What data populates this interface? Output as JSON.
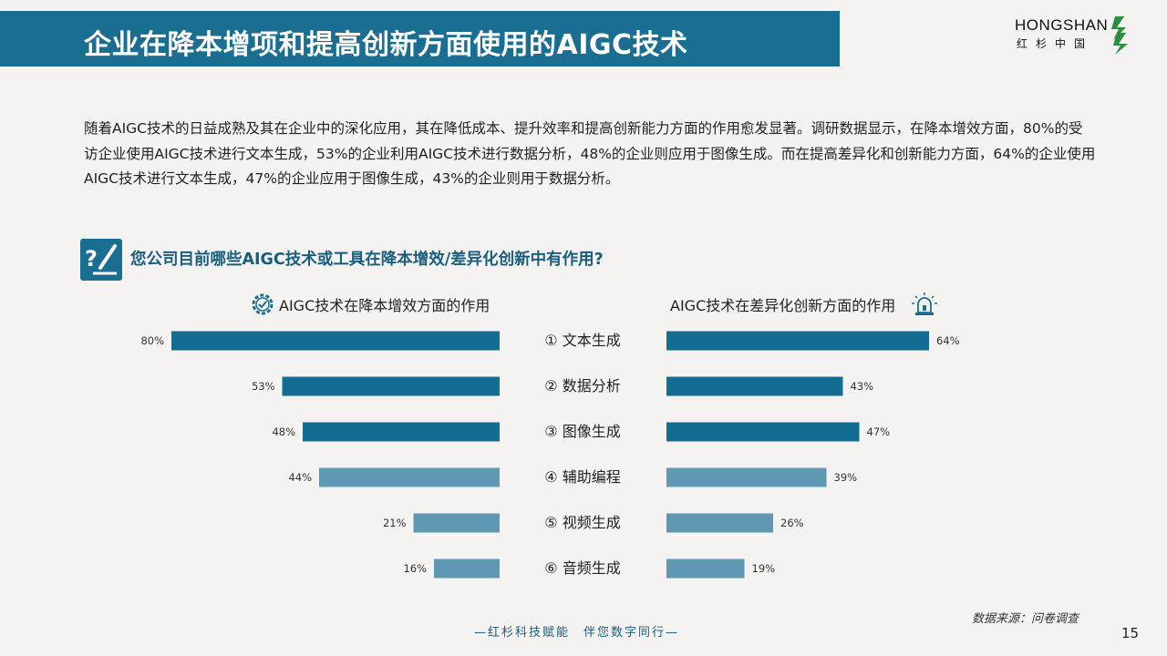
{
  "header": {
    "title": "企业在降本增项和提高创新方面使用的AIGC技术",
    "logo_text": "HONGSHAN",
    "logo_cn": "红杉中国"
  },
  "intro": {
    "text": "随着AIGC技术的日益成熟及其在企业中的深化应用，其在降低成本、提升效率和提高创新能力方面的作用愈发显著。调研数据显示，在降本增效方面，80%的受访企业使用AIGC技术进行文本生成，53%的企业利用AIGC技术进行数据分析，48%的企业则应用于图像生成。而在提高差异化和创新能力方面，64%的企业使用AIGC技术进行文本生成，47%的企业应用于图像生成，43%的企业则用于数据分析。"
  },
  "question": {
    "text": "您公司目前哪些AIGC技术或工具在降本增效/差异化创新中有作用?"
  },
  "panels": {
    "left_title": "AIGC技术在降本增效方面的作用",
    "right_title": "AIGC技术在差异化创新方面的作用"
  },
  "chart_data": {
    "type": "bar",
    "orientation": "horizontal-butterfly",
    "categories": [
      "① 文本生成",
      "② 数据分析",
      "③ 图像生成",
      "④ 辅助编程",
      "⑤ 视频生成",
      "⑥ 音频生成"
    ],
    "series": [
      {
        "name": "AIGC技术在降本增效方面的作用",
        "values": [
          80,
          53,
          48,
          44,
          21,
          16
        ],
        "labels": [
          "80%",
          "53%",
          "48%",
          "44%",
          "21%",
          "16%"
        ]
      },
      {
        "name": "AIGC技术在差异化创新方面的作用",
        "values": [
          64,
          43,
          47,
          39,
          26,
          19
        ],
        "labels": [
          "64%",
          "43%",
          "47%",
          "39%",
          "26%",
          "19%"
        ]
      }
    ],
    "unit": "%",
    "xlim": [
      0,
      100
    ],
    "colors": {
      "top3": "#136d93",
      "rest": "#5e98b3"
    },
    "grid": false
  },
  "footer": {
    "source": "数据来源：问卷调查",
    "slogan": "—红杉科技赋能　伴您数字同行—",
    "page_number": "15"
  },
  "icons": {
    "question": "question-pencil-icon",
    "left_panel": "gear-check-icon",
    "right_panel": "alarm-lamp-icon",
    "logo": "hongshan-logo-icon"
  },
  "colors": {
    "title_bar": "#1a6e92",
    "accent_text": "#1a5e7e",
    "background": "#f4f3f1"
  }
}
